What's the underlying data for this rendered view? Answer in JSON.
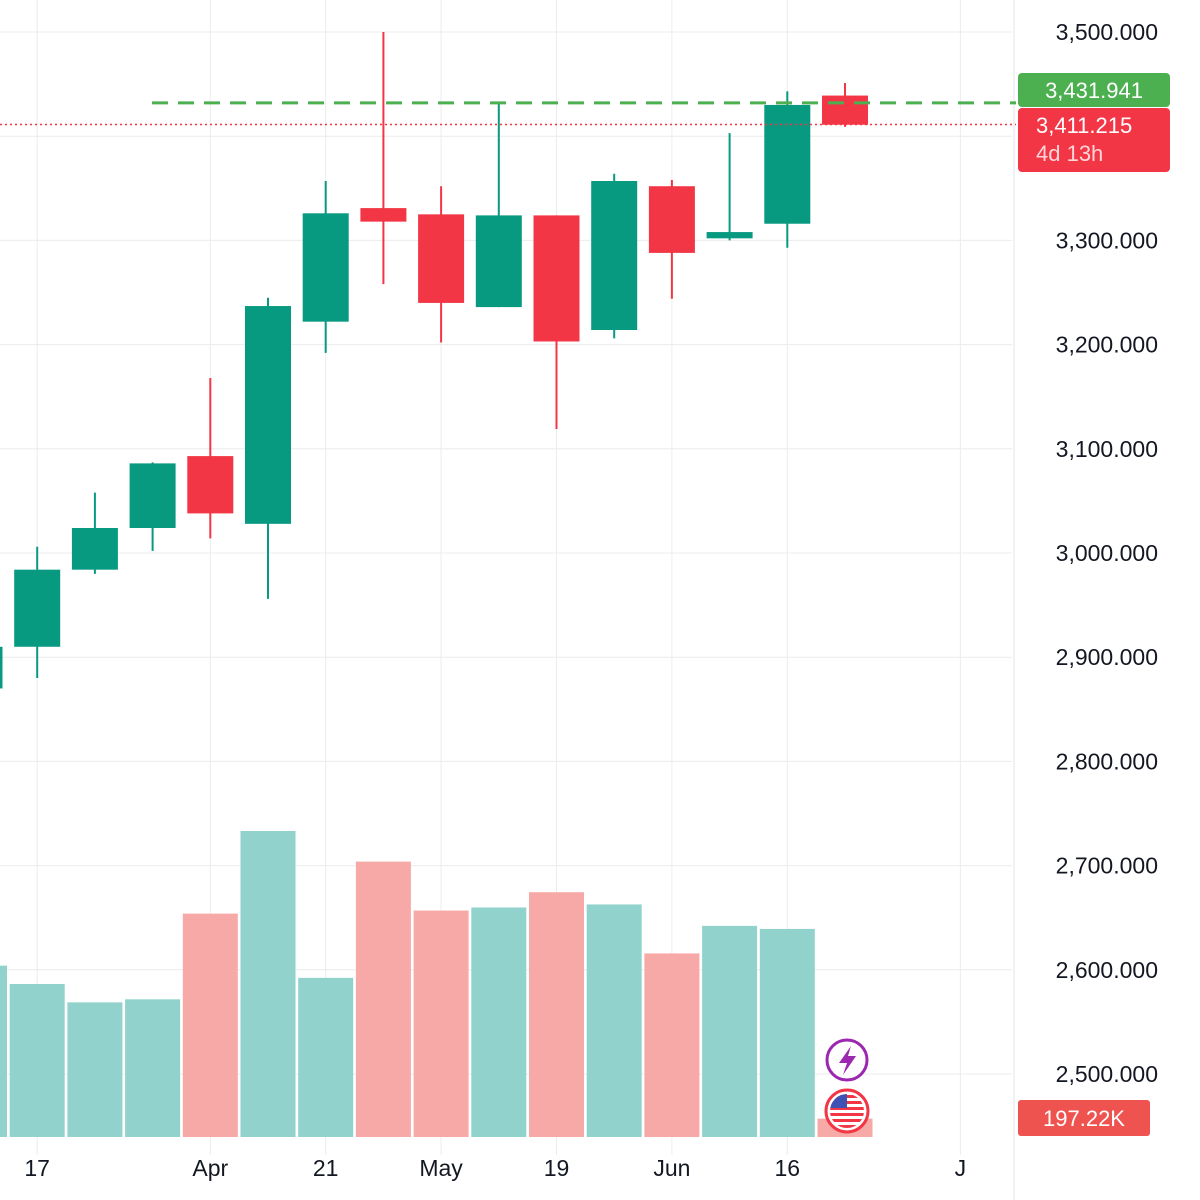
{
  "colors": {
    "up": "#089981",
    "down": "#f23645",
    "volume_up": "#92d2cc",
    "volume_down": "#f7a9a7",
    "grid": "#ececec",
    "text": "#131722",
    "last_price_tag": "#f23645",
    "high_tag": "#4caf50",
    "volume_tag": "#ef5350",
    "dashed_level": "#4caf50",
    "event_purple": "#9c27b0"
  },
  "icons": {
    "event_flash": "lightning-icon",
    "event_economic": "us-flag-icon"
  },
  "price_tags": {
    "high_level": "3,431.941",
    "last_price": "3,411.215",
    "countdown": "4d 13h",
    "volume": "197.22K"
  },
  "chart_data": {
    "type": "candlestick",
    "timeframe": "weekly",
    "y_axis": {
      "ticks": [
        "3,500.000",
        "3,300.000",
        "3,200.000",
        "3,100.000",
        "3,000.000",
        "2,900.000",
        "2,800.000",
        "2,700.000",
        "2,600.000",
        "2,500.000"
      ],
      "tick_values": [
        3500,
        3300,
        3200,
        3100,
        3000,
        2900,
        2800,
        2700,
        2600,
        2500
      ],
      "range": [
        2466,
        3560
      ]
    },
    "x_axis": {
      "labels": [
        "17",
        "Apr",
        "21",
        "May",
        "19",
        "Jun",
        "16",
        "J"
      ],
      "label_candle_index": [
        1,
        4,
        6,
        8,
        10,
        12,
        14,
        17
      ]
    },
    "level_line": 3431.941,
    "last_price": 3411.215,
    "candles": [
      {
        "open": 2870,
        "high": 2912,
        "low": 2866,
        "close": 2910
      },
      {
        "open": 2910,
        "high": 3006,
        "low": 2880,
        "close": 2984
      },
      {
        "open": 2984,
        "high": 3058,
        "low": 2980,
        "close": 3024
      },
      {
        "open": 3024,
        "high": 3087,
        "low": 3002,
        "close": 3086
      },
      {
        "open": 3093,
        "high": 3168,
        "low": 3014,
        "close": 3038
      },
      {
        "open": 3028,
        "high": 3245,
        "low": 2956,
        "close": 3237
      },
      {
        "open": 3222,
        "high": 3357,
        "low": 3192,
        "close": 3326
      },
      {
        "open": 3331,
        "high": 3500,
        "low": 3258,
        "close": 3318
      },
      {
        "open": 3325,
        "high": 3352,
        "low": 3202,
        "close": 3240
      },
      {
        "open": 3236,
        "high": 3432,
        "low": 3236,
        "close": 3324
      },
      {
        "open": 3324,
        "high": 3324,
        "low": 3119,
        "close": 3203
      },
      {
        "open": 3214,
        "high": 3364,
        "low": 3206,
        "close": 3357
      },
      {
        "open": 3352,
        "high": 3358,
        "low": 3244,
        "close": 3288
      },
      {
        "open": 3302,
        "high": 3403,
        "low": 3300,
        "close": 3308
      },
      {
        "open": 3316,
        "high": 3443,
        "low": 3293,
        "close": 3430
      },
      {
        "open": 3439,
        "high": 3451,
        "low": 3409,
        "close": 3411
      }
    ],
    "volumes": [
      {
        "value": 0.56,
        "direction": "up"
      },
      {
        "value": 0.5,
        "direction": "up"
      },
      {
        "value": 0.44,
        "direction": "up"
      },
      {
        "value": 0.45,
        "direction": "up"
      },
      {
        "value": 0.73,
        "direction": "down"
      },
      {
        "value": 1.0,
        "direction": "up"
      },
      {
        "value": 0.52,
        "direction": "up"
      },
      {
        "value": 0.9,
        "direction": "down"
      },
      {
        "value": 0.74,
        "direction": "down"
      },
      {
        "value": 0.75,
        "direction": "up"
      },
      {
        "value": 0.8,
        "direction": "down"
      },
      {
        "value": 0.76,
        "direction": "up"
      },
      {
        "value": 0.6,
        "direction": "down"
      },
      {
        "value": 0.69,
        "direction": "up"
      },
      {
        "value": 0.68,
        "direction": "up"
      },
      {
        "value": 0.06,
        "direction": "down"
      }
    ]
  }
}
